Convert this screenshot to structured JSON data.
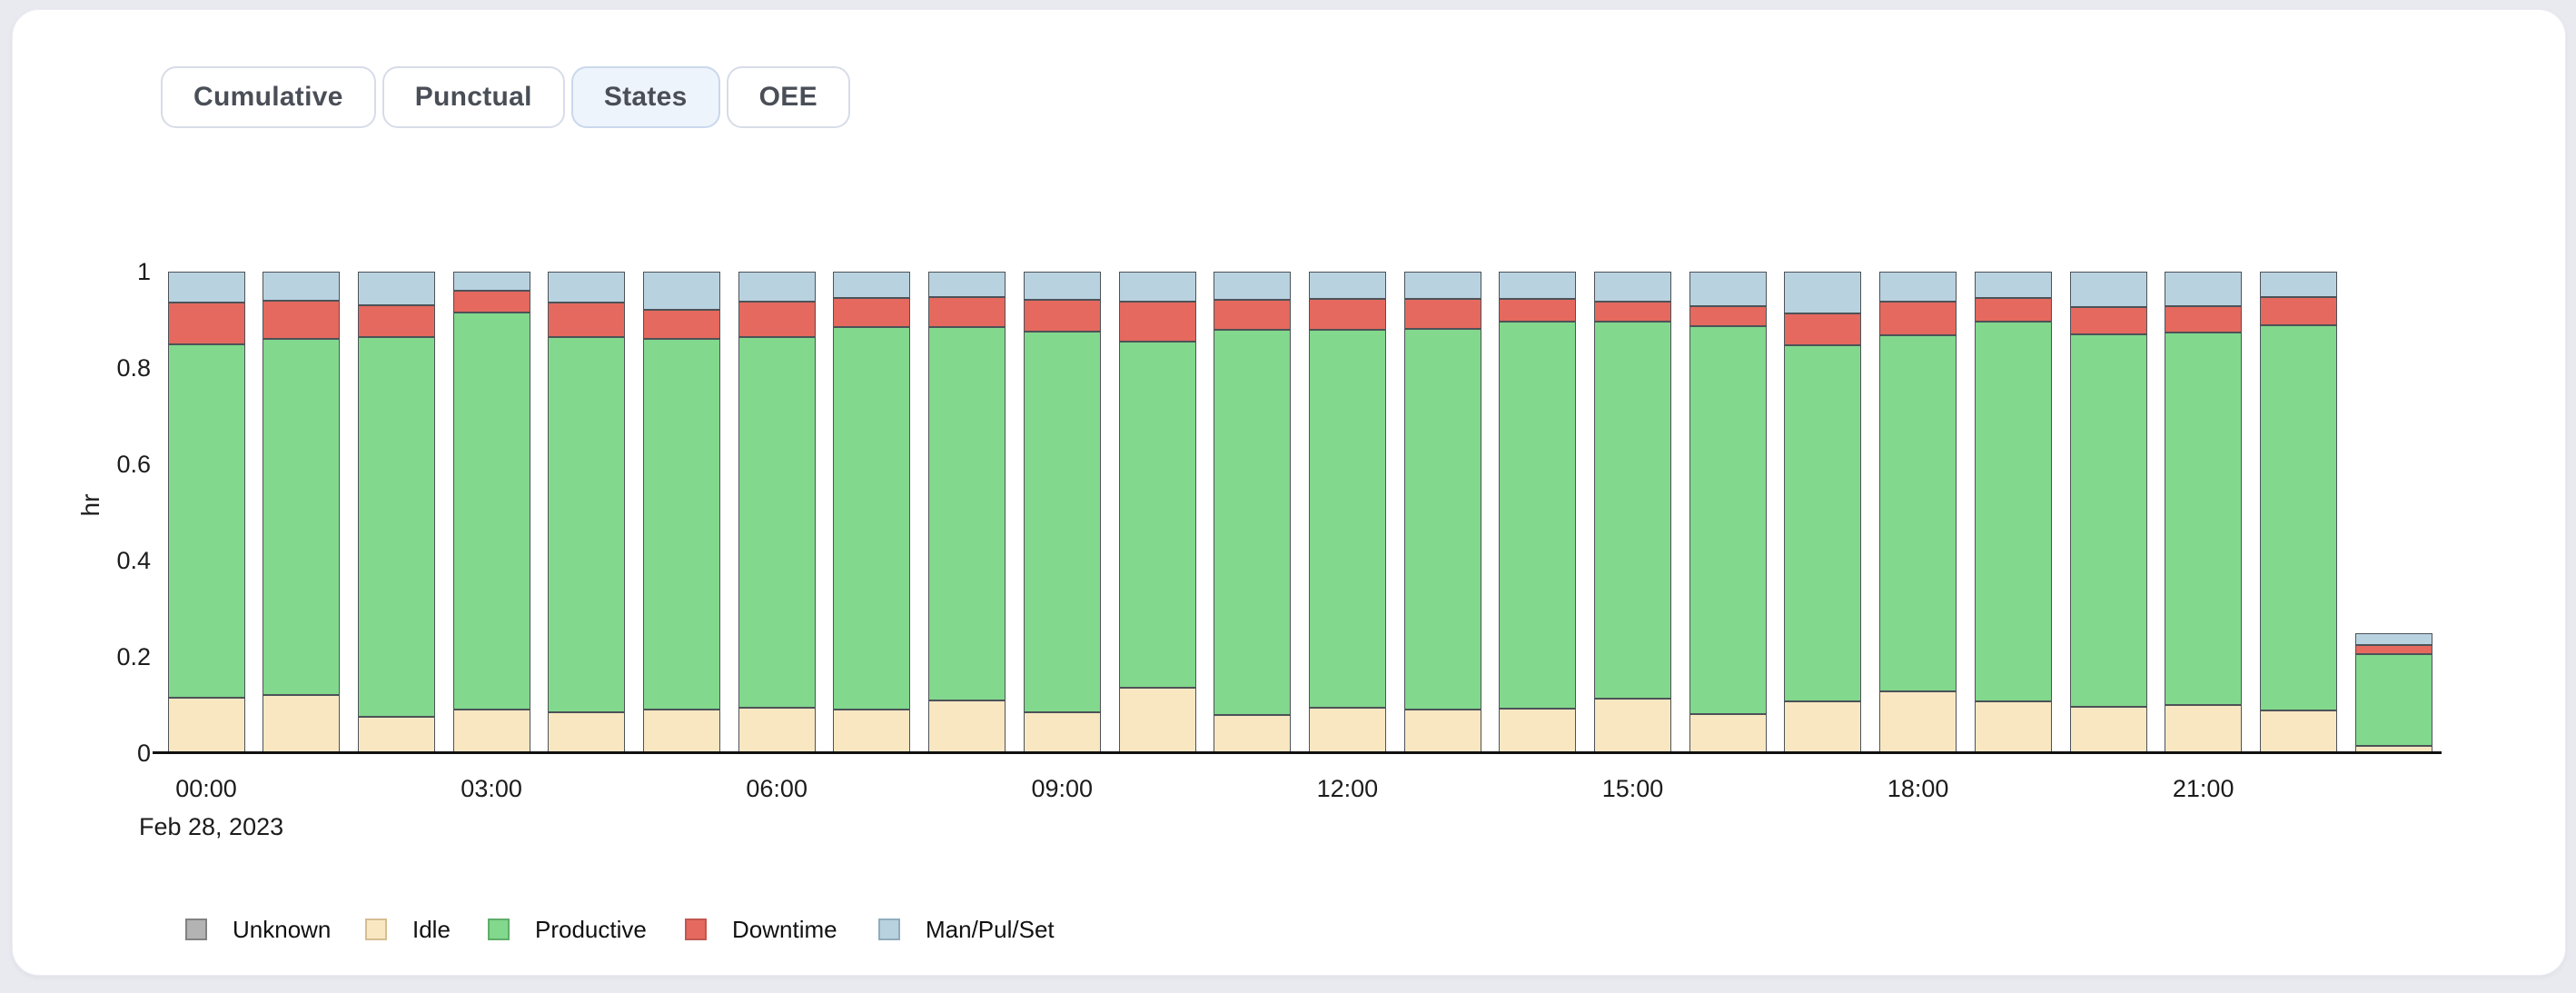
{
  "tabs": [
    {
      "label": "Cumulative",
      "active": false
    },
    {
      "label": "Punctual",
      "active": false
    },
    {
      "label": "States",
      "active": true
    },
    {
      "label": "OEE",
      "active": false
    }
  ],
  "chart_data": {
    "type": "bar",
    "stacked": true,
    "ylabel": "hr",
    "x_date_label": "Feb 28, 2023",
    "ylim": [
      0,
      1
    ],
    "grid": false,
    "legend_position": "bottom",
    "categories": [
      "00:00",
      "01:00",
      "02:00",
      "03:00",
      "04:00",
      "05:00",
      "06:00",
      "07:00",
      "08:00",
      "09:00",
      "10:00",
      "11:00",
      "12:00",
      "13:00",
      "14:00",
      "15:00",
      "16:00",
      "17:00",
      "18:00",
      "19:00",
      "20:00",
      "21:00",
      "22:00",
      "23:00"
    ],
    "x_tick_labels": [
      "00:00",
      "03:00",
      "06:00",
      "09:00",
      "12:00",
      "15:00",
      "18:00",
      "21:00"
    ],
    "x_tick_indices": [
      0,
      3,
      6,
      9,
      12,
      15,
      18,
      21
    ],
    "y_ticks": [
      {
        "v": 0,
        "label": "0"
      },
      {
        "v": 0.2,
        "label": "0.2"
      },
      {
        "v": 0.4,
        "label": "0.4"
      },
      {
        "v": 0.6,
        "label": "0.6"
      },
      {
        "v": 0.8,
        "label": "0.8"
      },
      {
        "v": 1,
        "label": "1"
      }
    ],
    "series": [
      {
        "name": "Unknown",
        "color": "#b3b3b3",
        "legend_border": "#828282",
        "values": [
          0,
          0,
          0,
          0,
          0,
          0,
          0,
          0,
          0,
          0,
          0,
          0,
          0,
          0,
          0,
          0,
          0,
          0,
          0,
          0,
          0,
          0,
          0,
          0
        ]
      },
      {
        "name": "Idle",
        "color": "#f9e7c2",
        "legend_border": "#d6bd92",
        "values": [
          0.115,
          0.12,
          0.075,
          0.09,
          0.085,
          0.09,
          0.095,
          0.09,
          0.11,
          0.085,
          0.135,
          0.08,
          0.095,
          0.09,
          0.093,
          0.113,
          0.082,
          0.108,
          0.128,
          0.107,
          0.096,
          0.1,
          0.088,
          0.015
        ]
      },
      {
        "name": "Productive",
        "color": "#82d88d",
        "legend_border": "#5fae6a",
        "values": [
          0.735,
          0.74,
          0.79,
          0.825,
          0.78,
          0.77,
          0.77,
          0.795,
          0.775,
          0.79,
          0.72,
          0.8,
          0.785,
          0.792,
          0.803,
          0.783,
          0.805,
          0.74,
          0.74,
          0.79,
          0.773,
          0.773,
          0.8,
          0.19
        ]
      },
      {
        "name": "Downtime",
        "color": "#e5695e",
        "legend_border": "#c25750",
        "values": [
          0.085,
          0.08,
          0.065,
          0.045,
          0.07,
          0.06,
          0.073,
          0.06,
          0.063,
          0.066,
          0.082,
          0.061,
          0.063,
          0.062,
          0.047,
          0.042,
          0.041,
          0.066,
          0.07,
          0.048,
          0.057,
          0.055,
          0.06,
          0.02
        ]
      },
      {
        "name": "Man/Pul/Set",
        "color": "#b9d2e0",
        "legend_border": "#8fadbc",
        "values": [
          0.065,
          0.06,
          0.07,
          0.04,
          0.065,
          0.08,
          0.062,
          0.055,
          0.052,
          0.059,
          0.063,
          0.059,
          0.057,
          0.056,
          0.057,
          0.062,
          0.072,
          0.086,
          0.062,
          0.055,
          0.074,
          0.072,
          0.052,
          0.025
        ]
      }
    ]
  },
  "legend": [
    {
      "label": "Unknown"
    },
    {
      "label": "Idle"
    },
    {
      "label": "Productive"
    },
    {
      "label": "Downtime"
    },
    {
      "label": "Man/Pul/Set"
    }
  ]
}
